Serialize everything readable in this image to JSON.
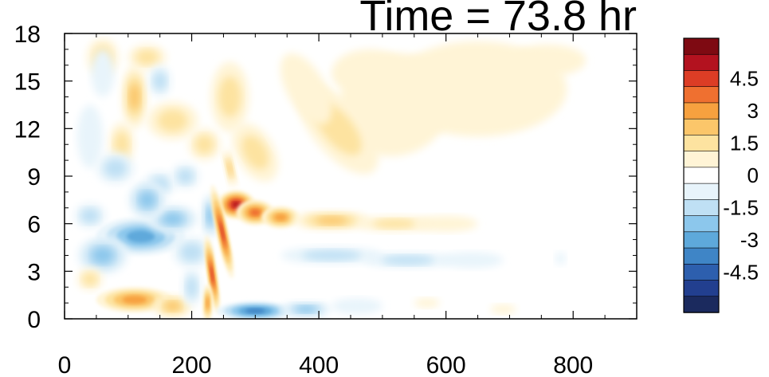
{
  "chart_data": {
    "type": "heatmap",
    "title": "Time = 73.8 hr",
    "xlabel": "",
    "ylabel": "",
    "xlim": [
      0,
      900
    ],
    "ylim": [
      0,
      18
    ],
    "x_ticks": [
      0,
      200,
      400,
      600,
      800
    ],
    "y_ticks": [
      0,
      3,
      6,
      9,
      12,
      15,
      18
    ],
    "grid": false,
    "colorbar": {
      "placement": "right",
      "levels": [
        -5.25,
        -4.5,
        -3.75,
        -3,
        -2.25,
        -1.5,
        -0.75,
        0,
        0.75,
        1.5,
        2.25,
        3,
        3.75,
        4.5,
        5.25
      ],
      "tick_labels": [
        "4.5",
        "3",
        "1.5",
        "0",
        "-1.5",
        "-3",
        "-4.5"
      ],
      "tick_values": [
        4.5,
        3,
        1.5,
        0,
        -1.5,
        -3,
        -4.5
      ],
      "colors": [
        "#1b2a5e",
        "#223f8f",
        "#2d5fae",
        "#3f85c6",
        "#5ea9db",
        "#8cc7ec",
        "#bfe0f4",
        "#e8f4fb",
        "#ffffff",
        "#fff4d6",
        "#fde3a0",
        "#fbc66a",
        "#f7a13f",
        "#ef7030",
        "#dc3d25",
        "#b3121f",
        "#7e0a12"
      ]
    },
    "features": [
      {
        "label": "strong positive ridge near x=250",
        "x": 260,
        "y": 7,
        "value": 5.0
      },
      {
        "label": "negative band near y=4",
        "x": 500,
        "y": 4,
        "value": -1.5
      },
      {
        "label": "positive band near y=6",
        "x": 450,
        "y": 6.3,
        "value": 2.0
      },
      {
        "label": "negative region near surface",
        "x": 300,
        "y": 0.5,
        "value": -4.0
      },
      {
        "label": "positive region near surface",
        "x": 120,
        "y": 1.2,
        "value": 3.0
      }
    ]
  }
}
